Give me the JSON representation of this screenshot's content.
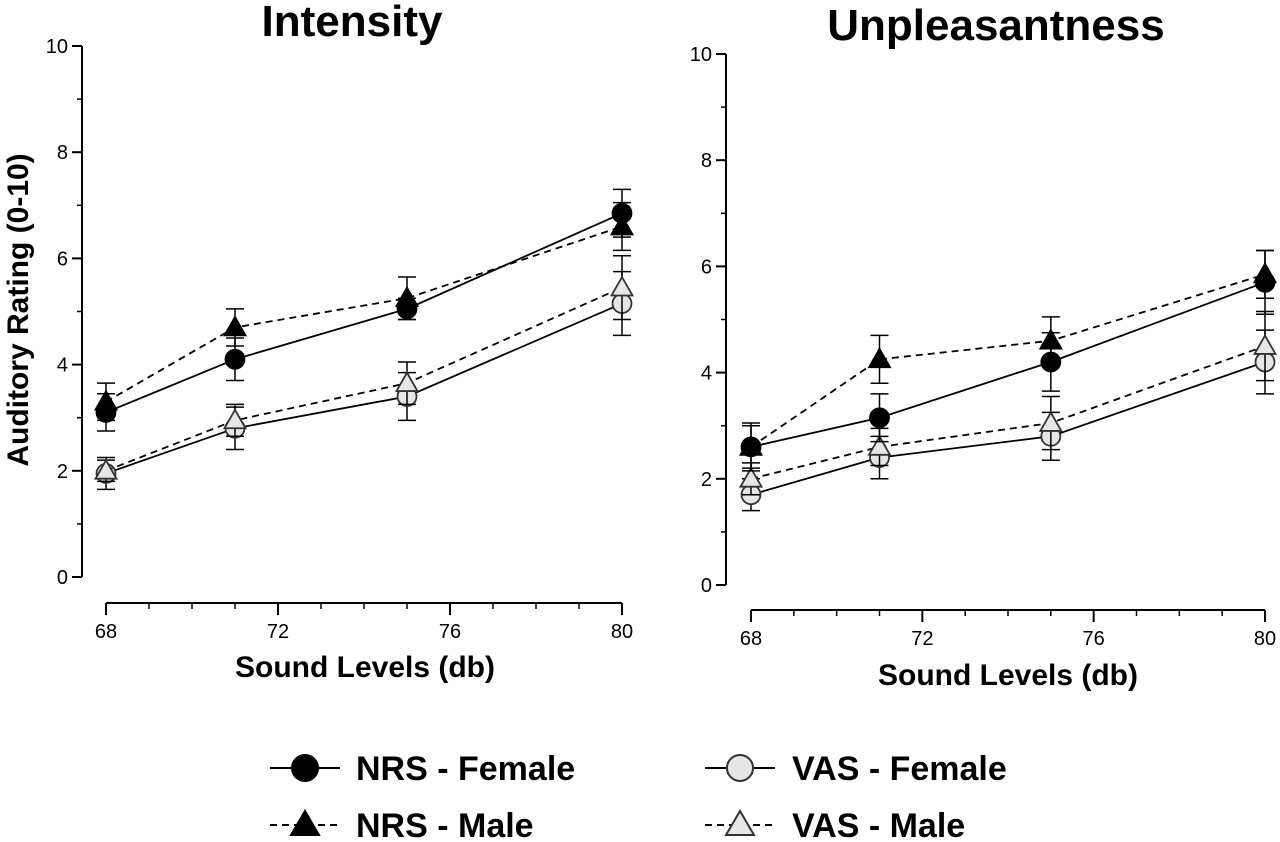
{
  "colors": {
    "axis": "#000000",
    "filled_marker": "#000000",
    "open_marker_fill": "#e6e6e6",
    "open_marker_stroke": "#333333",
    "background": "#ffffff"
  },
  "legend": {
    "entries": [
      {
        "series": "nrs_female",
        "label": "NRS - Female",
        "marker": "circle-filled",
        "line": "solid"
      },
      {
        "series": "nrs_male",
        "label": "NRS - Male",
        "marker": "triangle-filled",
        "line": "dashed"
      },
      {
        "series": "vas_female",
        "label": "VAS - Female",
        "marker": "circle-open",
        "line": "solid"
      },
      {
        "series": "vas_male",
        "label": "VAS - Male",
        "marker": "triangle-open",
        "line": "dashed"
      }
    ]
  },
  "chart_data": [
    {
      "type": "line",
      "title": "Intensity",
      "xlabel": "Sound Levels (db)",
      "ylabel": "Auditory Rating (0-10)",
      "xlim": [
        68,
        80
      ],
      "ylim": [
        0,
        10
      ],
      "xticks": [
        "68",
        "72",
        "76",
        "80"
      ],
      "yticks": [
        "0",
        "2",
        "4",
        "6",
        "8",
        "10"
      ],
      "x": [
        68,
        71,
        75,
        80
      ],
      "series": [
        {
          "key": "nrs_female",
          "name": "NRS - Female",
          "marker": "circle-filled",
          "line": "solid",
          "values": [
            3.1,
            4.1,
            5.05,
            6.85
          ],
          "errors": [
            0.35,
            0.4,
            0.2,
            0.45
          ]
        },
        {
          "key": "nrs_male",
          "name": "NRS - Male",
          "marker": "triangle-filled",
          "line": "dashed",
          "values": [
            3.3,
            4.7,
            5.25,
            6.6
          ],
          "errors": [
            0.35,
            0.35,
            0.4,
            0.45
          ]
        },
        {
          "key": "vas_female",
          "name": "VAS - Female",
          "marker": "circle-open",
          "line": "solid",
          "values": [
            1.95,
            2.8,
            3.4,
            5.15
          ],
          "errors": [
            0.3,
            0.4,
            0.45,
            0.6
          ]
        },
        {
          "key": "vas_male",
          "name": "VAS - Male",
          "marker": "triangle-open",
          "line": "dashed",
          "values": [
            2.0,
            2.95,
            3.65,
            5.45
          ],
          "errors": [
            0.2,
            0.3,
            0.4,
            0.6
          ]
        }
      ]
    },
    {
      "type": "line",
      "title": "Unpleasantness",
      "xlabel": "Sound Levels (db)",
      "ylabel": "",
      "xlim": [
        68,
        80
      ],
      "ylim": [
        0,
        10
      ],
      "xticks": [
        "68",
        "72",
        "76",
        "80"
      ],
      "yticks": [
        "0",
        "2",
        "4",
        "6",
        "8",
        "10"
      ],
      "x": [
        68,
        71,
        75,
        80
      ],
      "series": [
        {
          "key": "nrs_female",
          "name": "NRS - Female",
          "marker": "circle-filled",
          "line": "solid",
          "values": [
            2.6,
            3.15,
            4.2,
            5.7
          ],
          "errors": [
            0.45,
            0.45,
            0.55,
            0.6
          ]
        },
        {
          "key": "nrs_male",
          "name": "NRS - Male",
          "marker": "triangle-filled",
          "line": "dashed",
          "values": [
            2.6,
            4.25,
            4.6,
            5.85
          ],
          "errors": [
            0.4,
            0.45,
            0.45,
            0.45
          ]
        },
        {
          "key": "vas_female",
          "name": "VAS - Female",
          "marker": "circle-open",
          "line": "solid",
          "values": [
            1.7,
            2.4,
            2.8,
            4.2
          ],
          "errors": [
            0.3,
            0.4,
            0.45,
            0.6
          ]
        },
        {
          "key": "vas_male",
          "name": "VAS - Male",
          "marker": "triangle-open",
          "line": "dashed",
          "values": [
            2.0,
            2.6,
            3.05,
            4.5
          ],
          "errors": [
            0.3,
            0.35,
            0.5,
            0.65
          ]
        }
      ]
    }
  ]
}
